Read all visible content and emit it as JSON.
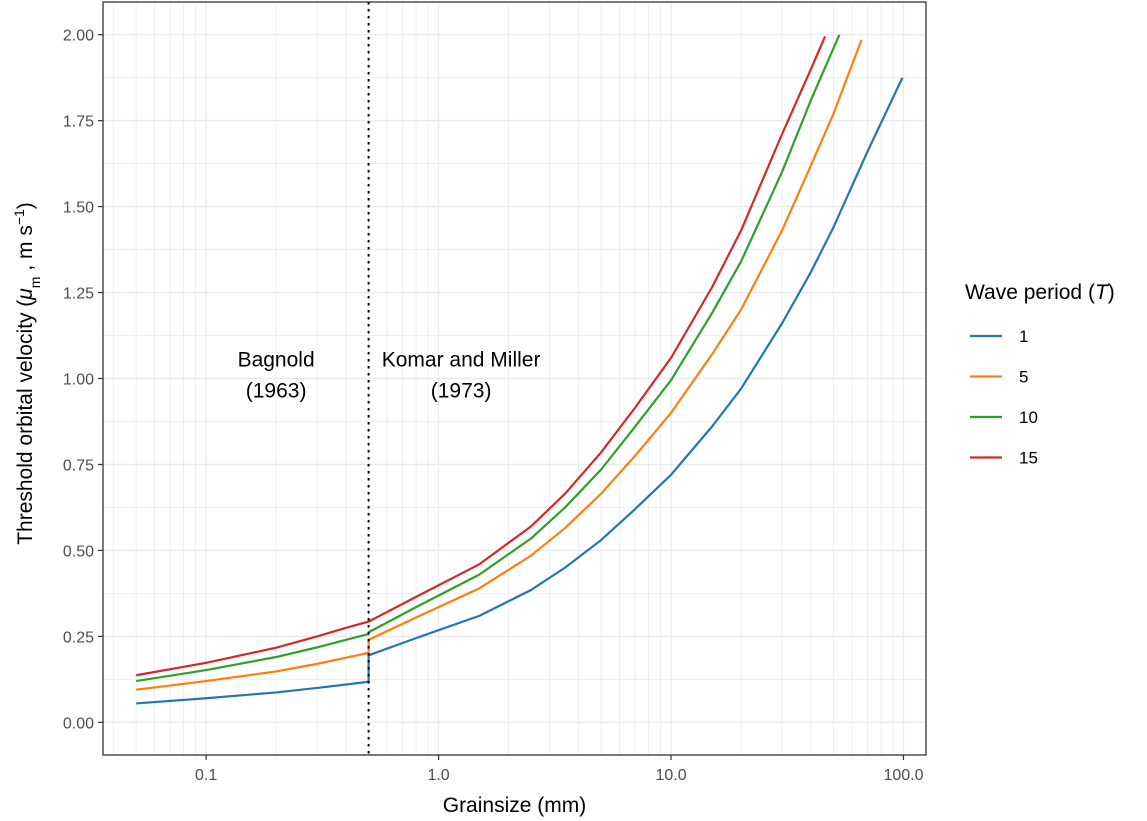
{
  "chart_data": {
    "type": "line",
    "x_scale": "log10",
    "xlabel": "Grainsize (mm)",
    "ylabel": {
      "prefix": "Threshold orbital velocity (",
      "symbol": "μ",
      "symbol_sub": "m",
      "middle": " , m s",
      "unit_sup": "−1",
      "suffix": ")"
    },
    "xlim": [
      0.036,
      125
    ],
    "ylim": [
      -0.095,
      2.095
    ],
    "x_ticks": [
      {
        "value": 0.1,
        "label": "0.1"
      },
      {
        "value": 1,
        "label": "1.0"
      },
      {
        "value": 10,
        "label": "10.0"
      },
      {
        "value": 100,
        "label": "100.0"
      }
    ],
    "y_ticks": [
      {
        "value": 0,
        "label": "0.00"
      },
      {
        "value": 0.25,
        "label": "0.25"
      },
      {
        "value": 0.5,
        "label": "0.50"
      },
      {
        "value": 0.75,
        "label": "0.75"
      },
      {
        "value": 1,
        "label": "1.00"
      },
      {
        "value": 1.25,
        "label": "1.25"
      },
      {
        "value": 1.5,
        "label": "1.50"
      },
      {
        "value": 1.75,
        "label": "1.75"
      },
      {
        "value": 2,
        "label": "2.00"
      }
    ],
    "grid": true,
    "vline": {
      "x": 0.5,
      "style": "dotted"
    },
    "annotations": [
      {
        "lines": [
          "Bagnold",
          "(1963)"
        ],
        "x": 0.2,
        "y": 1.0
      },
      {
        "lines": [
          "Komar and Miller",
          "(1973)"
        ],
        "x": 1.25,
        "y": 1.0
      }
    ],
    "legend": {
      "title_text": "Wave period (",
      "title_symbol": "T",
      "title_close": ")",
      "position": "right"
    },
    "series": [
      {
        "name": "1",
        "color": "#1f77b4",
        "points": [
          [
            0.05,
            0.055
          ],
          [
            0.1,
            0.07
          ],
          [
            0.2,
            0.087
          ],
          [
            0.3,
            0.1
          ],
          [
            0.4,
            0.11
          ],
          [
            0.5,
            0.118
          ],
          [
            0.5,
            0.195
          ],
          [
            0.8,
            0.245
          ],
          [
            1.5,
            0.31
          ],
          [
            2.5,
            0.385
          ],
          [
            3.5,
            0.45
          ],
          [
            5,
            0.53
          ],
          [
            7,
            0.62
          ],
          [
            10,
            0.72
          ],
          [
            15,
            0.86
          ],
          [
            20,
            0.97
          ],
          [
            30,
            1.16
          ],
          [
            40,
            1.31
          ],
          [
            50,
            1.44
          ],
          [
            70,
            1.66
          ],
          [
            99,
            1.875
          ]
        ]
      },
      {
        "name": "5",
        "color": "#ff7f0e",
        "points": [
          [
            0.05,
            0.095
          ],
          [
            0.1,
            0.12
          ],
          [
            0.2,
            0.148
          ],
          [
            0.3,
            0.17
          ],
          [
            0.4,
            0.188
          ],
          [
            0.5,
            0.202
          ],
          [
            0.5,
            0.24
          ],
          [
            0.8,
            0.305
          ],
          [
            1.5,
            0.39
          ],
          [
            2.5,
            0.485
          ],
          [
            3.5,
            0.565
          ],
          [
            5,
            0.665
          ],
          [
            7,
            0.775
          ],
          [
            10,
            0.9
          ],
          [
            15,
            1.07
          ],
          [
            20,
            1.2
          ],
          [
            30,
            1.43
          ],
          [
            40,
            1.62
          ],
          [
            50,
            1.77
          ],
          [
            66,
            1.985
          ]
        ]
      },
      {
        "name": "10",
        "color": "#2ca02c",
        "points": [
          [
            0.05,
            0.12
          ],
          [
            0.1,
            0.152
          ],
          [
            0.2,
            0.19
          ],
          [
            0.3,
            0.218
          ],
          [
            0.4,
            0.24
          ],
          [
            0.5,
            0.257
          ],
          [
            0.5,
            0.262
          ],
          [
            0.8,
            0.335
          ],
          [
            1.5,
            0.43
          ],
          [
            2.5,
            0.535
          ],
          [
            3.5,
            0.625
          ],
          [
            5,
            0.735
          ],
          [
            7,
            0.86
          ],
          [
            10,
            0.995
          ],
          [
            15,
            1.19
          ],
          [
            20,
            1.34
          ],
          [
            30,
            1.6
          ],
          [
            40,
            1.81
          ],
          [
            53,
            2.0
          ]
        ]
      },
      {
        "name": "15",
        "color": "#d62728",
        "points": [
          [
            0.05,
            0.137
          ],
          [
            0.1,
            0.173
          ],
          [
            0.2,
            0.217
          ],
          [
            0.3,
            0.25
          ],
          [
            0.4,
            0.275
          ],
          [
            0.5,
            0.293
          ],
          [
            0.8,
            0.365
          ],
          [
            1.5,
            0.46
          ],
          [
            2.5,
            0.57
          ],
          [
            3.5,
            0.665
          ],
          [
            5,
            0.785
          ],
          [
            7,
            0.915
          ],
          [
            10,
            1.06
          ],
          [
            15,
            1.265
          ],
          [
            20,
            1.43
          ],
          [
            30,
            1.71
          ],
          [
            40,
            1.9
          ],
          [
            46,
            1.995
          ]
        ]
      }
    ]
  }
}
